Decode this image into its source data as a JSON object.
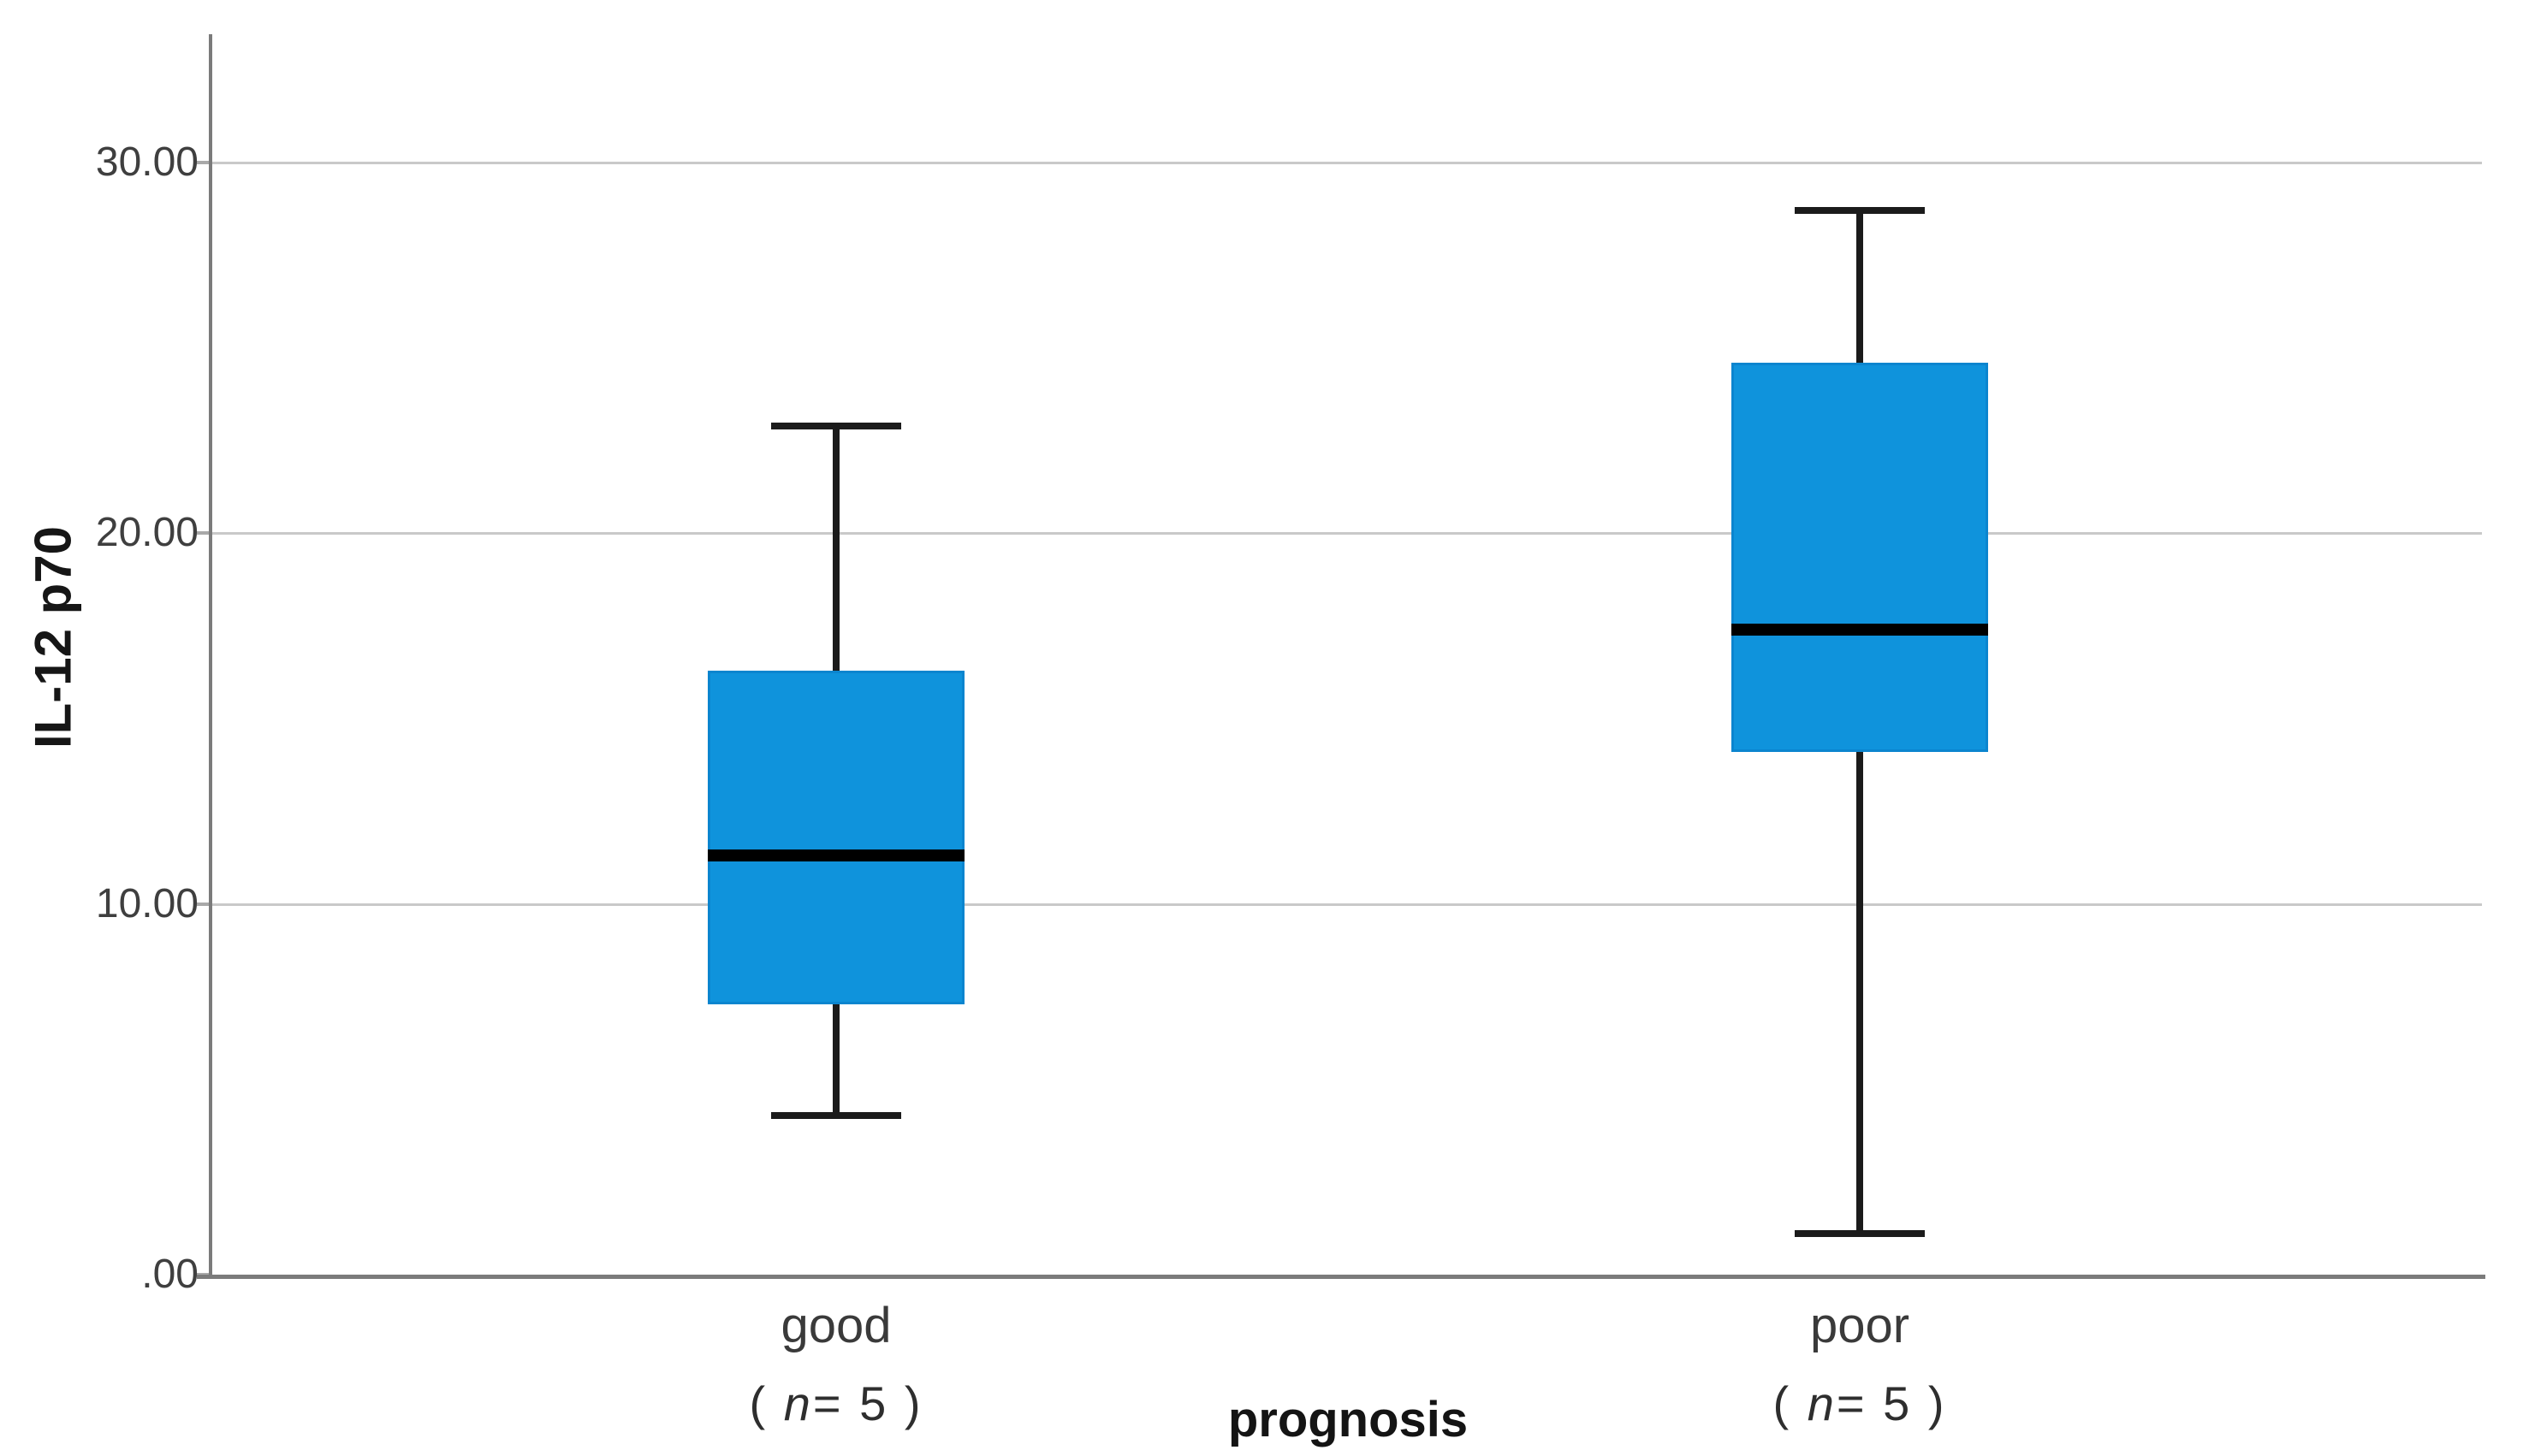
{
  "chart_data": {
    "type": "box",
    "title": "",
    "ylabel": "IL-12 p70",
    "xlabel": "prognosis",
    "ylim": [
      0,
      33.5
    ],
    "grid": "horizontal gridlines at labeled y ticks, no right/top border",
    "legend": "none",
    "yticks": [
      {
        "value": 0,
        "label": ".00"
      },
      {
        "value": 10,
        "label": "10.00"
      },
      {
        "value": 20,
        "label": "20.00"
      },
      {
        "value": 30,
        "label": "30.00"
      }
    ],
    "categories": [
      "good",
      "poor"
    ],
    "series": [
      {
        "category": "good",
        "n": 5,
        "n_label": {
          "open": "( ",
          "n": "n",
          "rest": "= 5 )"
        },
        "min": 4.3,
        "q1": 7.3,
        "median": 11.3,
        "q3": 16.3,
        "max": 22.9,
        "x_frac": 0.275
      },
      {
        "category": "poor",
        "n": 5,
        "n_label": {
          "open": "( ",
          "n": "n",
          "rest": "= 5 )"
        },
        "min": 1.1,
        "q1": 14.1,
        "median": 17.4,
        "q3": 24.6,
        "max": 28.7,
        "x_frac": 0.726
      }
    ],
    "colors": {
      "box_fill": "#0F93DC",
      "box_border": "#0B85CF",
      "median": "#000000",
      "whisker": "#1B1B1B",
      "axis": "#7B7B7B",
      "gridline": "#C9C9C9",
      "tick_text": "#3F3F3F",
      "label_text": "#3A3A3A"
    }
  }
}
